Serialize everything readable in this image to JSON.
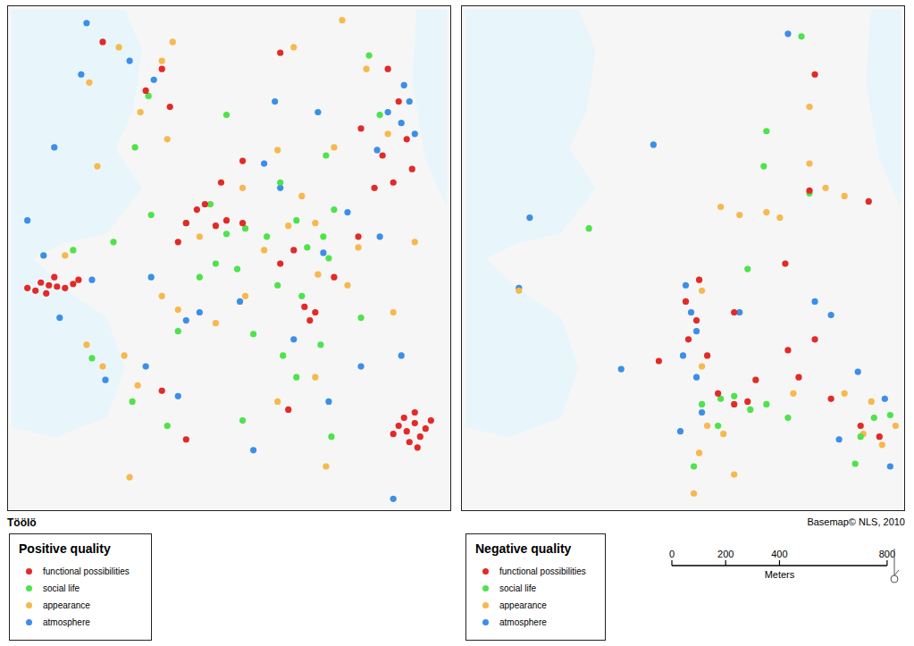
{
  "map_label": "Töölö",
  "credit": "Basemap© NLS, 2010",
  "scale_bar": {
    "ticks": [
      0,
      200,
      400,
      800
    ],
    "unit": "Meters"
  },
  "chart_data": [
    {
      "type": "scatter",
      "legend_title": "Positive quality",
      "xlim": [
        0,
        1620
      ],
      "ylim": [
        0,
        1840
      ],
      "tick_labels": false,
      "grid": false,
      "series": [
        {
          "name": "functional possibilities",
          "color": "#e32a27",
          "points": [
            [
              110,
              830
            ],
            [
              140,
              820
            ],
            [
              170,
              815
            ],
            [
              200,
              810
            ],
            [
              230,
              825
            ],
            [
              160,
              850
            ],
            [
              90,
              800
            ],
            [
              250,
              840
            ],
            [
              130,
              790
            ],
            [
              60,
              810
            ],
            [
              760,
              1040
            ],
            [
              800,
              1060
            ],
            [
              690,
              1100
            ],
            [
              720,
              1120
            ],
            [
              650,
              1050
            ],
            [
              620,
              980
            ],
            [
              1090,
              740
            ],
            [
              1130,
              720
            ],
            [
              1110,
              690
            ],
            [
              1000,
              900
            ],
            [
              1050,
              950
            ],
            [
              1200,
              850
            ],
            [
              860,
              1050
            ],
            [
              780,
              1200
            ],
            [
              1350,
              1180
            ],
            [
              1400,
              1620
            ],
            [
              1440,
              1500
            ],
            [
              1470,
              1360
            ],
            [
              1380,
              1300
            ],
            [
              1420,
              1200
            ],
            [
              1490,
              1250
            ],
            [
              1300,
              1400
            ],
            [
              1440,
              300
            ],
            [
              1470,
              280
            ],
            [
              1500,
              310
            ],
            [
              1520,
              260
            ],
            [
              1480,
              240
            ],
            [
              1540,
              290
            ],
            [
              1460,
              330
            ],
            [
              1500,
              350
            ],
            [
              1420,
              270
            ],
            [
              1560,
              320
            ],
            [
              1510,
              220
            ],
            [
              500,
              1540
            ],
            [
              560,
              1620
            ],
            [
              590,
              1480
            ],
            [
              340,
              1720
            ],
            [
              1290,
              1000
            ],
            [
              1030,
              360
            ],
            [
              650,
              250
            ],
            [
              560,
              430
            ],
            [
              860,
              1280
            ],
            [
              1000,
              1680
            ]
          ]
        },
        {
          "name": "social life",
          "color": "#4ee34b",
          "points": [
            [
              800,
              1010
            ],
            [
              870,
              1030
            ],
            [
              950,
              1000
            ],
            [
              1060,
              1060
            ],
            [
              1100,
              960
            ],
            [
              1160,
              1000
            ],
            [
              1180,
              920
            ],
            [
              990,
              820
            ],
            [
              1080,
              780
            ],
            [
              840,
              880
            ],
            [
              760,
              900
            ],
            [
              700,
              850
            ],
            [
              650,
              1050
            ],
            [
              740,
              1120
            ],
            [
              1000,
              1200
            ],
            [
              1200,
              1100
            ],
            [
              1370,
              1450
            ],
            [
              1330,
              1670
            ],
            [
              510,
              1520
            ],
            [
              460,
              1330
            ],
            [
              520,
              1080
            ],
            [
              380,
              980
            ],
            [
              230,
              950
            ],
            [
              300,
              550
            ],
            [
              450,
              390
            ],
            [
              580,
              300
            ],
            [
              1010,
              560
            ],
            [
              1150,
              600
            ],
            [
              900,
              640
            ],
            [
              1300,
              700
            ],
            [
              1060,
              480
            ],
            [
              1170,
              1300
            ],
            [
              800,
              1450
            ],
            [
              1190,
              260
            ],
            [
              620,
              650
            ],
            [
              860,
              320
            ]
          ]
        },
        {
          "name": "appearance",
          "color": "#f7b84d",
          "points": [
            [
              400,
              1700
            ],
            [
              560,
              1650
            ],
            [
              480,
              1460
            ],
            [
              600,
              1720
            ],
            [
              1230,
              1800
            ],
            [
              1320,
              1620
            ],
            [
              1400,
              1380
            ],
            [
              1200,
              1330
            ],
            [
              1080,
              1150
            ],
            [
              1130,
              1050
            ],
            [
              1030,
              1040
            ],
            [
              940,
              950
            ],
            [
              1140,
              860
            ],
            [
              1250,
              820
            ],
            [
              1290,
              960
            ],
            [
              870,
              780
            ],
            [
              760,
              680
            ],
            [
              620,
              730
            ],
            [
              700,
              1000
            ],
            [
              560,
              780
            ],
            [
              420,
              560
            ],
            [
              340,
              520
            ],
            [
              470,
              450
            ],
            [
              280,
              600
            ],
            [
              200,
              930
            ],
            [
              320,
              1260
            ],
            [
              580,
              1360
            ],
            [
              990,
              1320
            ],
            [
              860,
              1180
            ],
            [
              1130,
              480
            ],
            [
              990,
              390
            ],
            [
              1420,
              720
            ],
            [
              1500,
              980
            ],
            [
              1170,
              150
            ],
            [
              440,
              110
            ],
            [
              290,
              1570
            ],
            [
              1050,
              1700
            ]
          ]
        },
        {
          "name": "atmosphere",
          "color": "#3b8fe8",
          "points": [
            [
              260,
              1600
            ],
            [
              160,
              1330
            ],
            [
              440,
              1650
            ],
            [
              530,
              1580
            ],
            [
              280,
              1790
            ],
            [
              1400,
              1460
            ],
            [
              1450,
              1420
            ],
            [
              1480,
              1500
            ],
            [
              1460,
              1560
            ],
            [
              1500,
              1380
            ],
            [
              1360,
              1320
            ],
            [
              940,
              1270
            ],
            [
              1000,
              1180
            ],
            [
              1250,
              1090
            ],
            [
              1370,
              1000
            ],
            [
              1160,
              940
            ],
            [
              850,
              760
            ],
            [
              700,
              720
            ],
            [
              650,
              690
            ],
            [
              520,
              850
            ],
            [
              300,
              840
            ],
            [
              180,
              700
            ],
            [
              350,
              470
            ],
            [
              500,
              520
            ],
            [
              620,
              410
            ],
            [
              1050,
              620
            ],
            [
              1180,
              390
            ],
            [
              1300,
              520
            ],
            [
              1450,
              560
            ],
            [
              60,
              1060
            ],
            [
              900,
              210
            ],
            [
              1140,
              1460
            ],
            [
              1420,
              30
            ],
            [
              980,
              1500
            ],
            [
              120,
              930
            ]
          ]
        }
      ]
    },
    {
      "type": "scatter",
      "legend_title": "Negative quality",
      "xlim": [
        0,
        1620
      ],
      "ylim": [
        0,
        1840
      ],
      "tick_labels": false,
      "grid": false,
      "series": [
        {
          "name": "functional possibilities",
          "color": "#e32a27",
          "points": [
            [
              820,
              760
            ],
            [
              860,
              690
            ],
            [
              830,
              620
            ],
            [
              900,
              560
            ],
            [
              940,
              420
            ],
            [
              1000,
              380
            ],
            [
              1050,
              390
            ],
            [
              1080,
              470
            ],
            [
              1200,
              580
            ],
            [
              1300,
              620
            ],
            [
              1240,
              480
            ],
            [
              1360,
              400
            ],
            [
              1470,
              300
            ],
            [
              1540,
              260
            ],
            [
              1280,
              1170
            ],
            [
              1190,
              900
            ],
            [
              1000,
              720
            ],
            [
              870,
              840
            ],
            [
              1500,
              1130
            ],
            [
              1300,
              1600
            ],
            [
              720,
              540
            ]
          ]
        },
        {
          "name": "social life",
          "color": "#4ee34b",
          "points": [
            [
              880,
              380
            ],
            [
              950,
              400
            ],
            [
              1000,
              410
            ],
            [
              1060,
              360
            ],
            [
              1120,
              380
            ],
            [
              1200,
              330
            ],
            [
              940,
              300
            ],
            [
              850,
              150
            ],
            [
              1470,
              260
            ],
            [
              1520,
              330
            ],
            [
              1580,
              340
            ],
            [
              1120,
              1390
            ],
            [
              1110,
              1260
            ],
            [
              1280,
              1160
            ],
            [
              1250,
              1740
            ],
            [
              460,
              1030
            ],
            [
              1450,
              160
            ],
            [
              1050,
              880
            ]
          ]
        },
        {
          "name": "appearance",
          "color": "#f7b84d",
          "points": [
            [
              880,
              520
            ],
            [
              900,
              300
            ],
            [
              870,
              200
            ],
            [
              850,
              50
            ],
            [
              960,
              270
            ],
            [
              1020,
              1080
            ],
            [
              1120,
              1090
            ],
            [
              1170,
              1070
            ],
            [
              1340,
              1180
            ],
            [
              1480,
              270
            ],
            [
              1550,
              230
            ],
            [
              1600,
              300
            ],
            [
              1410,
              420
            ],
            [
              1510,
              390
            ],
            [
              1220,
              420
            ],
            [
              1280,
              1480
            ],
            [
              880,
              800
            ],
            [
              1280,
              1270
            ],
            [
              1410,
              1150
            ],
            [
              950,
              1110
            ],
            [
              1000,
              120
            ],
            [
              200,
              800
            ]
          ]
        },
        {
          "name": "atmosphere",
          "color": "#3b8fe8",
          "points": [
            [
              820,
              820
            ],
            [
              840,
              720
            ],
            [
              860,
              650
            ],
            [
              810,
              560
            ],
            [
              860,
              480
            ],
            [
              880,
              350
            ],
            [
              800,
              280
            ],
            [
              1300,
              760
            ],
            [
              1360,
              710
            ],
            [
              1390,
              250
            ],
            [
              1460,
              500
            ],
            [
              1560,
              400
            ],
            [
              1580,
              150
            ],
            [
              1200,
              1750
            ],
            [
              700,
              1340
            ],
            [
              240,
              1070
            ],
            [
              200,
              810
            ],
            [
              580,
              510
            ],
            [
              1020,
              720
            ]
          ]
        }
      ]
    }
  ]
}
